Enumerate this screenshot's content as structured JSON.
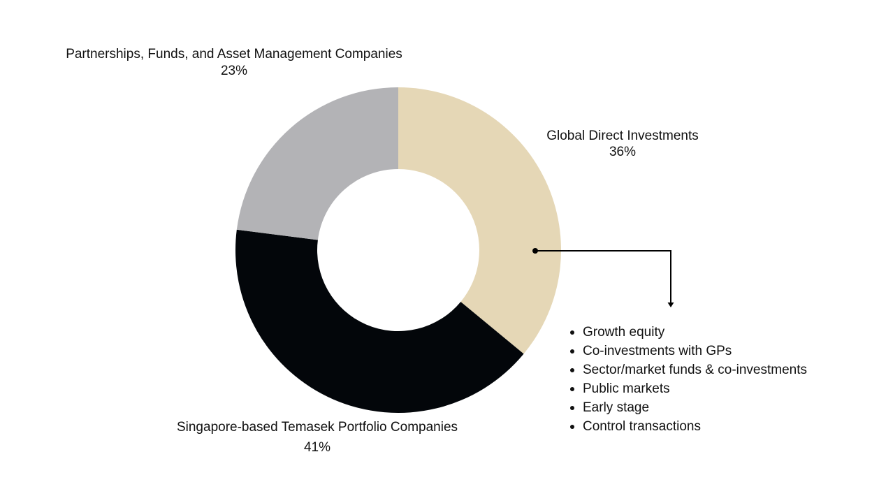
{
  "chart_data": {
    "type": "pie",
    "variant": "donut",
    "title": "",
    "slices": [
      {
        "label": "Global Direct Investments",
        "value": 36,
        "value_label": "36%",
        "color": "#e5d7b6"
      },
      {
        "label": "Singapore-based Temasek Portfolio Companies",
        "value": 41,
        "value_label": "41%",
        "color": "#03060a"
      },
      {
        "label": "Partnerships, Funds, and Asset Management Companies",
        "value": 23,
        "value_label": "23%",
        "color": "#b3b3b6"
      }
    ],
    "start": "12 o'clock",
    "direction": "clockwise",
    "callout": {
      "slice": "Global Direct Investments",
      "items": [
        "Growth equity",
        "Co-investments with GPs",
        "Sector/market funds & co-investments",
        "Public markets",
        "Early stage",
        "Control transactions"
      ]
    }
  }
}
